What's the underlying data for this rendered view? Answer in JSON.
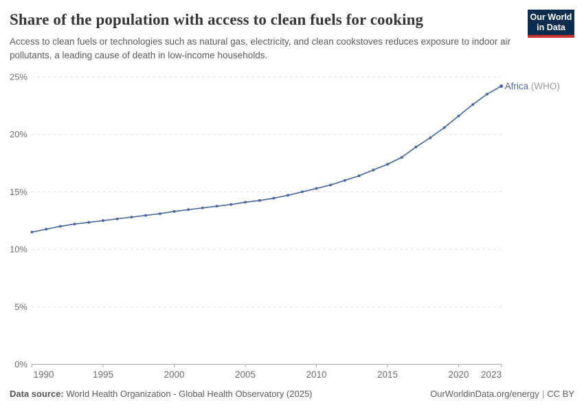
{
  "header": {
    "title": "Share of the population with access to clean fuels for cooking",
    "subtitle": "Access to clean fuels or technologies such as natural gas, electricity, and clean cookstoves reduces exposure to indoor air pollutants, a leading cause of death in low-income households.",
    "logo": {
      "line1": "Our World",
      "line2": "in Data"
    }
  },
  "chart_data": {
    "type": "line",
    "title": "Share of the population with access to clean fuels for cooking",
    "xlabel": "",
    "ylabel": "",
    "x": [
      1990,
      1991,
      1992,
      1993,
      1994,
      1995,
      1996,
      1997,
      1998,
      1999,
      2000,
      2001,
      2002,
      2003,
      2004,
      2005,
      2006,
      2007,
      2008,
      2009,
      2010,
      2011,
      2012,
      2013,
      2014,
      2015,
      2016,
      2017,
      2018,
      2019,
      2020,
      2021,
      2022,
      2023
    ],
    "series": [
      {
        "name": "Africa (WHO)",
        "entity": "Africa",
        "entity_suffix": "(WHO)",
        "values": [
          11.5,
          11.75,
          12.0,
          12.2,
          12.35,
          12.5,
          12.65,
          12.8,
          12.95,
          13.1,
          13.3,
          13.45,
          13.6,
          13.75,
          13.9,
          14.1,
          14.25,
          14.45,
          14.7,
          15.0,
          15.3,
          15.6,
          16.0,
          16.4,
          16.9,
          17.4,
          18.0,
          18.9,
          19.7,
          20.6,
          21.6,
          22.6,
          23.5,
          24.2
        ]
      }
    ],
    "ylim": [
      0,
      25
    ],
    "yticks": [
      0,
      5,
      10,
      15,
      20,
      25
    ],
    "ytick_suffix": "%",
    "xticks": [
      1990,
      1995,
      2000,
      2005,
      2010,
      2015,
      2020,
      2023
    ],
    "grid": "horizontal-dashed",
    "legend_position": "line-end-label"
  },
  "footer": {
    "source_label": "Data source:",
    "source_text": " World Health Organization - Global Health Observatory (2025)",
    "link": "OurWorldinData.org/energy",
    "separator": "|",
    "license": "CC BY"
  },
  "colors": {
    "line": "#4c6a9c",
    "entity_label": "#4c6a9c",
    "entity_suffix": "#9a9a9a",
    "grid": "#dcdcdc",
    "axis": "#a8a8a8",
    "tick_text": "#6e6e6e",
    "title_text": "#383636",
    "subtitle_text": "#5b5b5b",
    "logo_bg": "#0d2d4e",
    "logo_accent": "#cc3631"
  }
}
